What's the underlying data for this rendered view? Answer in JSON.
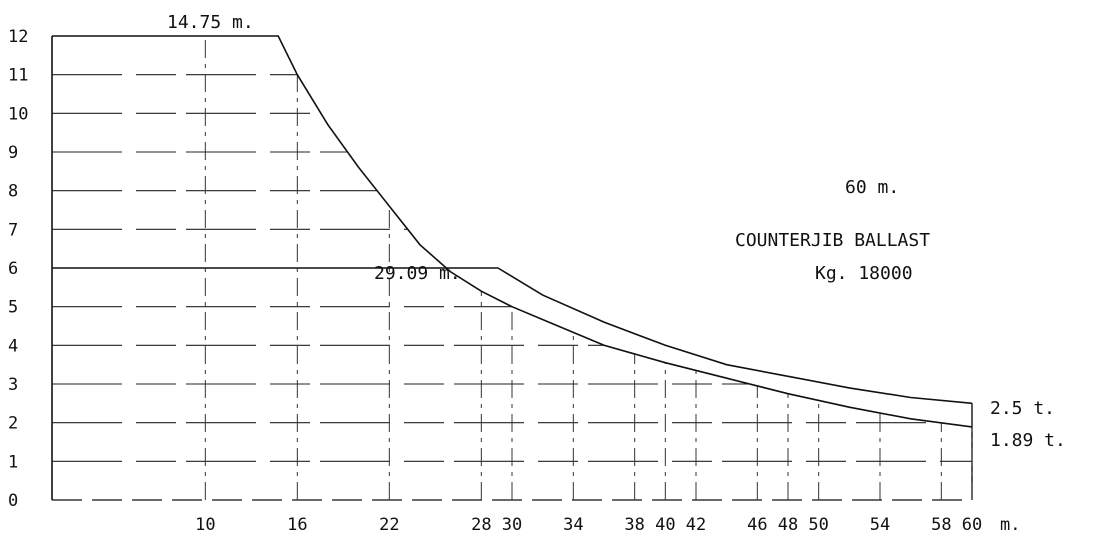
{
  "chart_data": {
    "type": "line",
    "title": "",
    "xlabel": "",
    "ylabel": "",
    "x_unit": "m.",
    "xlim": [
      0,
      60
    ],
    "ylim": [
      0,
      12
    ],
    "y_ticks": [
      "0",
      "1",
      "2",
      "3",
      "4",
      "5",
      "6",
      "7",
      "8",
      "9",
      "10",
      "11",
      "12"
    ],
    "x_ticks": [
      {
        "value": 10,
        "label": "10"
      },
      {
        "value": 16,
        "label": "16"
      },
      {
        "value": 22,
        "label": "22"
      },
      {
        "value": 28,
        "label": "28"
      },
      {
        "value": 30,
        "label": "30"
      },
      {
        "value": 34,
        "label": "34"
      },
      {
        "value": 38,
        "label": "38"
      },
      {
        "value": 40,
        "label": "40"
      },
      {
        "value": 42,
        "label": "42"
      },
      {
        "value": 46,
        "label": "46"
      },
      {
        "value": 48,
        "label": "48"
      },
      {
        "value": 50,
        "label": "50"
      },
      {
        "value": 54,
        "label": "54"
      },
      {
        "value": 58,
        "label": "58"
      },
      {
        "value": 60,
        "label": "60"
      }
    ],
    "series": [
      {
        "name": "",
        "x": [
          0,
          14.75,
          16,
          18,
          20,
          22,
          24,
          26,
          28,
          30,
          33,
          36,
          40,
          44,
          48,
          52,
          56,
          60
        ],
        "y": [
          12,
          12,
          11,
          9.7,
          8.6,
          7.6,
          6.6,
          5.9,
          5.4,
          5.0,
          4.5,
          4.0,
          3.55,
          3.15,
          2.75,
          2.4,
          2.1,
          1.89
        ]
      },
      {
        "name": "",
        "x": [
          0,
          29.09,
          32,
          36,
          40,
          44,
          48,
          52,
          56,
          60
        ],
        "y": [
          6,
          6,
          5.3,
          4.6,
          4.0,
          3.5,
          3.2,
          2.9,
          2.65,
          2.5
        ]
      }
    ],
    "annotations": [
      {
        "text": "14.75 m.",
        "x": 14.75,
        "y": 12
      },
      {
        "text": "29.09 m.",
        "x": 29.09,
        "y": 6
      },
      {
        "text": "2.5 t.",
        "x": 60,
        "y": 2.5
      },
      {
        "text": "1.89 t.",
        "x": 60,
        "y": 1.89
      },
      {
        "text": "60 m."
      },
      {
        "text": "COUNTERJIB BALLAST"
      },
      {
        "text": "Kg. 18000"
      }
    ],
    "grid": false,
    "legend": "none"
  }
}
